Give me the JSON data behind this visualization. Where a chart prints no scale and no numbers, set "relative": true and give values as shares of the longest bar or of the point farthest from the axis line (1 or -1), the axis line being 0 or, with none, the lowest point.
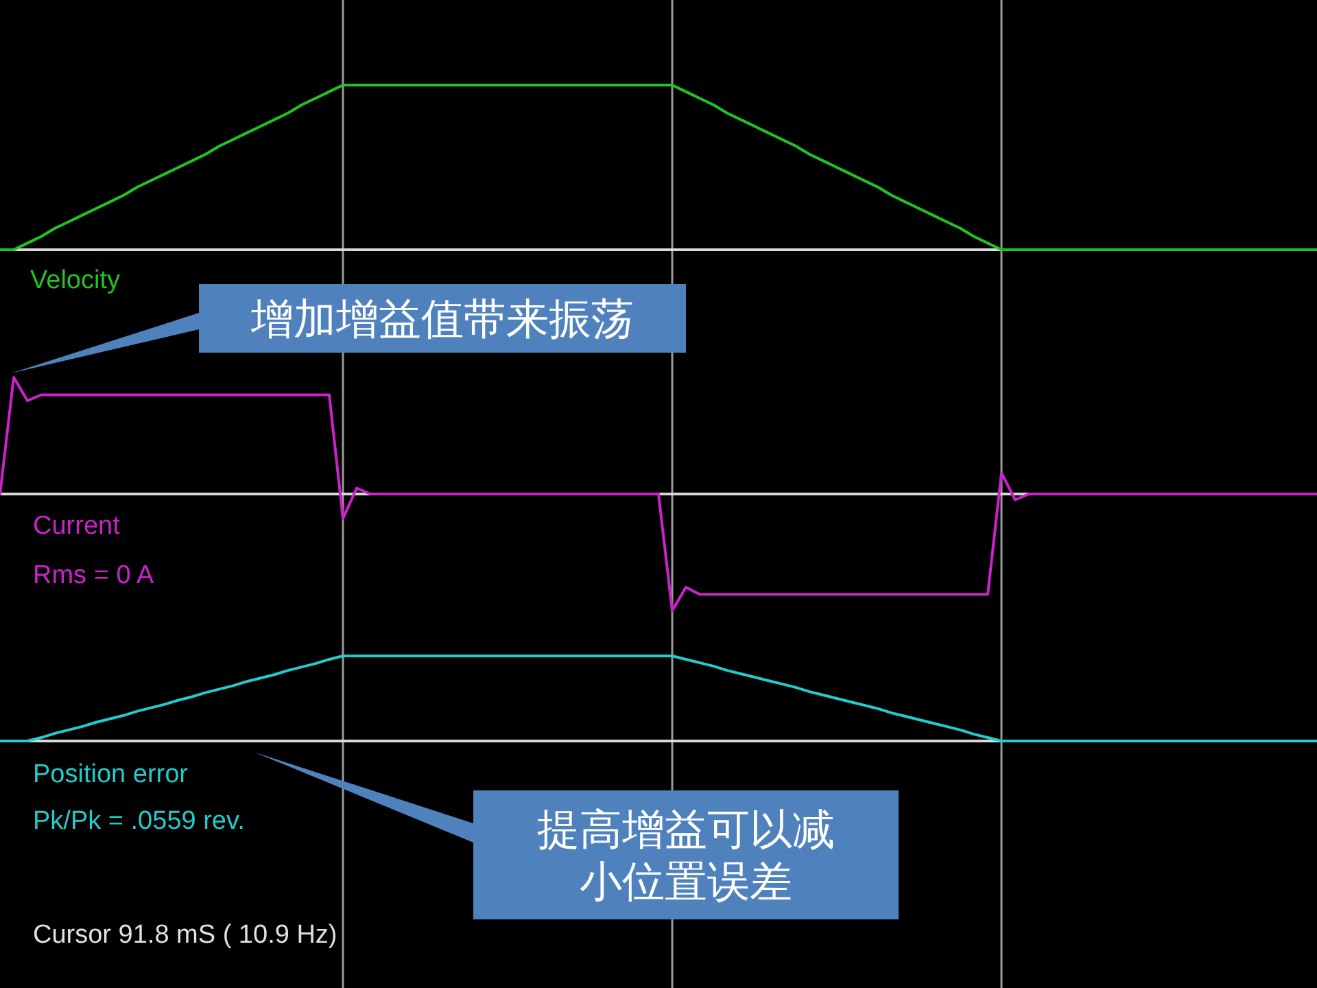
{
  "chart_data": [
    {
      "type": "line",
      "relative": true,
      "categories": [
        null,
        null,
        null,
        null,
        null,
        null,
        null,
        null,
        null,
        null,
        null,
        null,
        null,
        null,
        null,
        null,
        null,
        null,
        null,
        null,
        null,
        null,
        null,
        null,
        null,
        null,
        null,
        null,
        null,
        null,
        null,
        null,
        null,
        null,
        null,
        null,
        null,
        null,
        null,
        null,
        null,
        null,
        null,
        null,
        null,
        null,
        null,
        null,
        null,
        null,
        null,
        null,
        null,
        null,
        null,
        null,
        null,
        null,
        null,
        null,
        null,
        null,
        null,
        null,
        null,
        null,
        null,
        null,
        null,
        null,
        null,
        null,
        null,
        null,
        null,
        null,
        null,
        null,
        null,
        null,
        null,
        null,
        null,
        null,
        null,
        null,
        null,
        null,
        null,
        null,
        null,
        null,
        null,
        null,
        null,
        null,
        null
      ],
      "grid": true,
      "series": [
        {
          "name": "Velocity",
          "color": "#22c422",
          "values": [
            0,
            0,
            0.04,
            0.08,
            0.13,
            0.17,
            0.21,
            0.25,
            0.29,
            0.33,
            0.38,
            0.42,
            0.46,
            0.5,
            0.54,
            0.58,
            0.63,
            0.67,
            0.71,
            0.75,
            0.79,
            0.83,
            0.88,
            0.92,
            0.96,
            1,
            1,
            1,
            1,
            1,
            1,
            1,
            1,
            1,
            1,
            1,
            1,
            1,
            1,
            1,
            1,
            1,
            1,
            1,
            1,
            1,
            1,
            1,
            1,
            1,
            0.96,
            0.92,
            0.88,
            0.83,
            0.79,
            0.75,
            0.71,
            0.67,
            0.63,
            0.58,
            0.54,
            0.5,
            0.46,
            0.42,
            0.38,
            0.33,
            0.29,
            0.25,
            0.21,
            0.17,
            0.13,
            0.08,
            0.04,
            0,
            0,
            0,
            0,
            0,
            0,
            0,
            0,
            0,
            0,
            0,
            0,
            0,
            0,
            0,
            0,
            0,
            0,
            0,
            0,
            0,
            0,
            0,
            0
          ]
        }
      ]
    },
    {
      "type": "line",
      "relative": true,
      "categories": [
        null,
        null,
        null,
        null,
        null,
        null,
        null,
        null,
        null,
        null,
        null,
        null,
        null,
        null,
        null,
        null,
        null,
        null,
        null,
        null,
        null,
        null,
        null,
        null,
        null,
        null,
        null,
        null,
        null,
        null,
        null,
        null,
        null,
        null,
        null,
        null,
        null,
        null,
        null,
        null,
        null,
        null,
        null,
        null,
        null,
        null,
        null,
        null,
        null,
        null,
        null,
        null,
        null,
        null,
        null,
        null,
        null,
        null,
        null,
        null,
        null,
        null,
        null,
        null,
        null,
        null,
        null,
        null,
        null,
        null,
        null,
        null,
        null,
        null,
        null,
        null,
        null,
        null,
        null,
        null,
        null,
        null,
        null,
        null,
        null,
        null,
        null,
        null,
        null,
        null,
        null,
        null,
        null,
        null,
        null,
        null,
        null
      ],
      "grid": true,
      "annotations": [
        "Rms = 0 A",
        "增加增益值带来振荡"
      ],
      "series": [
        {
          "name": "Current",
          "color": "#cc22cc",
          "values": [
            0,
            1.0,
            0.8,
            0.85,
            0.85,
            0.85,
            0.85,
            0.85,
            0.85,
            0.85,
            0.85,
            0.85,
            0.85,
            0.85,
            0.85,
            0.85,
            0.85,
            0.85,
            0.85,
            0.85,
            0.85,
            0.85,
            0.85,
            0.85,
            0.85,
            -0.21,
            0.05,
            0,
            0,
            0,
            0,
            0,
            0,
            0,
            0,
            0,
            0,
            0,
            0,
            0,
            0,
            0,
            0,
            0,
            0,
            0,
            0,
            0,
            0,
            -1.0,
            -0.8,
            -0.86,
            -0.86,
            -0.86,
            -0.86,
            -0.86,
            -0.86,
            -0.86,
            -0.86,
            -0.86,
            -0.86,
            -0.86,
            -0.86,
            -0.86,
            -0.86,
            -0.86,
            -0.86,
            -0.86,
            -0.86,
            -0.86,
            -0.86,
            -0.86,
            -0.86,
            0.18,
            -0.05,
            0,
            0,
            0,
            0,
            0,
            0,
            0,
            0,
            0,
            0,
            0,
            0,
            0,
            0,
            0,
            0,
            0,
            0,
            0,
            0,
            0,
            0
          ]
        }
      ]
    },
    {
      "type": "line",
      "relative": true,
      "categories": [
        null,
        null,
        null,
        null,
        null,
        null,
        null,
        null,
        null,
        null,
        null,
        null,
        null,
        null,
        null,
        null,
        null,
        null,
        null,
        null,
        null,
        null,
        null,
        null,
        null,
        null,
        null,
        null,
        null,
        null,
        null,
        null,
        null,
        null,
        null,
        null,
        null,
        null,
        null,
        null,
        null,
        null,
        null,
        null,
        null,
        null,
        null,
        null,
        null,
        null,
        null,
        null,
        null,
        null,
        null,
        null,
        null,
        null,
        null,
        null,
        null,
        null,
        null,
        null,
        null,
        null,
        null,
        null,
        null,
        null,
        null,
        null,
        null,
        null,
        null,
        null,
        null,
        null,
        null,
        null,
        null,
        null,
        null,
        null,
        null,
        null,
        null,
        null,
        null,
        null,
        null,
        null,
        null,
        null,
        null,
        null,
        null
      ],
      "grid": true,
      "annotations": [
        "Pk/Pk = .0559 rev.",
        "提高增益可以减小位置误差",
        "Cursor 91.8 mS ( 10.9 Hz)"
      ],
      "series": [
        {
          "name": "Position error",
          "color": "#22cccc",
          "values": [
            0,
            0,
            0,
            0.04,
            0.09,
            0.13,
            0.17,
            0.22,
            0.26,
            0.3,
            0.35,
            0.39,
            0.43,
            0.48,
            0.52,
            0.57,
            0.61,
            0.65,
            0.7,
            0.74,
            0.78,
            0.83,
            0.87,
            0.91,
            0.96,
            1,
            1,
            1,
            1,
            1,
            1,
            1,
            1,
            1,
            1,
            1,
            1,
            1,
            1,
            1,
            1,
            1,
            1,
            1,
            1,
            1,
            1,
            1,
            1,
            1,
            0.96,
            0.92,
            0.88,
            0.83,
            0.79,
            0.75,
            0.71,
            0.67,
            0.63,
            0.58,
            0.54,
            0.5,
            0.46,
            0.42,
            0.38,
            0.33,
            0.29,
            0.25,
            0.21,
            0.17,
            0.13,
            0.08,
            0.04,
            0,
            0,
            0,
            0,
            0,
            0,
            0,
            0,
            0,
            0,
            0,
            0,
            0,
            0,
            0,
            0,
            0,
            0,
            0,
            0,
            0,
            0,
            0,
            0
          ]
        }
      ]
    }
  ]
}
